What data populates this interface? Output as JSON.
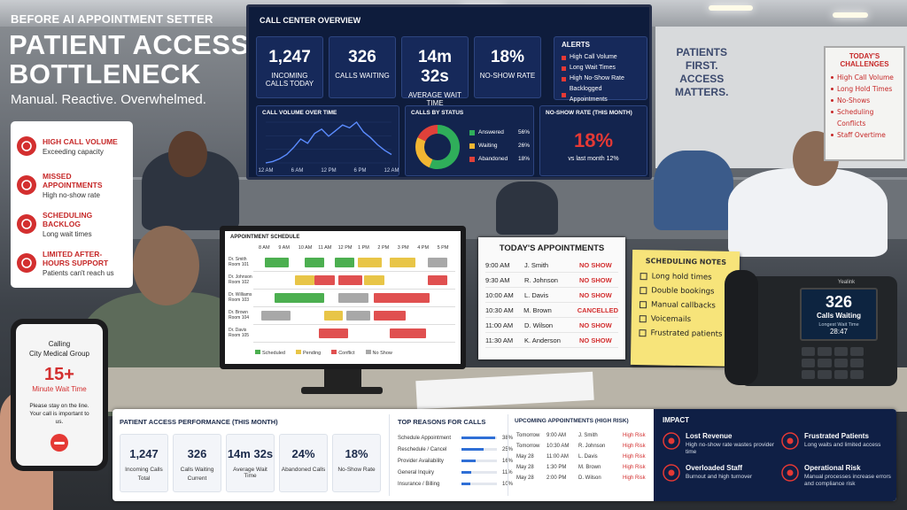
{
  "header": {
    "eyebrow": "BEFORE AI APPOINTMENT SETTER",
    "title_lines": [
      "PATIENT ACCESS",
      "BOTTLENECK"
    ],
    "subtitle": "Manual. Reactive. Overwhelmed."
  },
  "issues": [
    {
      "title": "HIGH CALL VOLUME",
      "detail": "Exceeding capacity"
    },
    {
      "title": "MISSED APPOINTMENTS",
      "detail": "High no-show rate"
    },
    {
      "title": "SCHEDULING BACKLOG",
      "detail": "Long wait times"
    },
    {
      "title": "LIMITED AFTER-HOURS SUPPORT",
      "detail": "Patients can't reach us"
    }
  ],
  "wall_screen": {
    "title": "CALL CENTER OVERVIEW",
    "kpis": [
      {
        "value": "1,247",
        "label": "INCOMING CALLS TODAY"
      },
      {
        "value": "326",
        "label": "CALLS WAITING"
      },
      {
        "value": "14m 32s",
        "label": "AVERAGE WAIT TIME"
      },
      {
        "value": "18%",
        "label": "NO-SHOW RATE"
      }
    ],
    "alerts": {
      "title": "ALERTS",
      "items": [
        "High Call Volume",
        "Long Wait Times",
        "High No-Show Rate",
        "Backlogged Appointments"
      ]
    },
    "call_volume": {
      "title": "CALL VOLUME OVER TIME",
      "x_labels": [
        "12 AM",
        "6 AM",
        "12 PM",
        "6 PM",
        "12 AM"
      ],
      "values": [
        8,
        10,
        14,
        20,
        30,
        42,
        36,
        50,
        56,
        46,
        54,
        62,
        58,
        66,
        52,
        44,
        34,
        26,
        20
      ]
    },
    "calls_by_status": {
      "title": "CALLS BY STATUS",
      "items": [
        {
          "label": "Answered",
          "value": 56,
          "value_label": "56%",
          "color": "#2fae5a"
        },
        {
          "label": "Waiting",
          "value": 26,
          "value_label": "26%",
          "color": "#f2b632"
        },
        {
          "label": "Abandoned",
          "value": 18,
          "value_label": "18%",
          "color": "#e0413a"
        }
      ]
    },
    "no_show": {
      "title": "NO-SHOW RATE (THIS MONTH)",
      "value": "18%",
      "comparison": "vs last month 12%"
    }
  },
  "wall_sign": {
    "lines": [
      "PATIENTS",
      "FIRST.",
      "ACCESS",
      "MATTERS."
    ]
  },
  "whiteboard": {
    "title": "TODAY'S CHALLENGES",
    "items": [
      "High Call Volume",
      "Long Hold Times",
      "No-Shows",
      "Scheduling Conflicts",
      "Staff Overtime"
    ]
  },
  "schedule": {
    "title": "APPOINTMENT SCHEDULE",
    "times": [
      "8 AM",
      "9 AM",
      "10 AM",
      "11 AM",
      "12 PM",
      "1 PM",
      "2 PM",
      "3 PM",
      "4 PM",
      "5 PM"
    ],
    "providers": [
      {
        "name": "Dr. Smith",
        "room": "Room 101"
      },
      {
        "name": "Dr. Johnson",
        "room": "Room 102"
      },
      {
        "name": "Dr. Williams",
        "room": "Room 103"
      },
      {
        "name": "Dr. Brown",
        "room": "Room 104"
      },
      {
        "name": "Dr. Davis",
        "room": "Room 105"
      }
    ],
    "legend": [
      {
        "label": "Scheduled",
        "color": "#4caf50"
      },
      {
        "label": "Pending",
        "color": "#e8c547"
      },
      {
        "label": "Conflict",
        "color": "#e05050"
      },
      {
        "label": "No Show",
        "color": "#a8a8a8"
      }
    ]
  },
  "appointments_sheet": {
    "title": "TODAY'S APPOINTMENTS",
    "rows": [
      [
        "9:00 AM",
        "J. Smith",
        "NO SHOW"
      ],
      [
        "9:30 AM",
        "R. Johnson",
        "NO SHOW"
      ],
      [
        "10:00 AM",
        "L. Davis",
        "NO SHOW"
      ],
      [
        "10:30 AM",
        "M. Brown",
        "CANCELLED"
      ],
      [
        "11:00 AM",
        "D. Wilson",
        "NO SHOW"
      ],
      [
        "11:30 AM",
        "K. Anderson",
        "NO SHOW"
      ]
    ]
  },
  "sticky_note": {
    "title": "SCHEDULING NOTES",
    "items": [
      "Long hold times",
      "Double bookings",
      "Manual callbacks",
      "Voicemails",
      "Frustrated patients"
    ]
  },
  "desk_phone": {
    "brand": "Yealink",
    "count": "326",
    "count_label": "Calls Waiting",
    "wait_label": "Longest Wait Time",
    "wait_value": "28:47"
  },
  "mobile_phone": {
    "status": "Calling",
    "caller": "City Medical Group",
    "wait_value": "15+",
    "wait_label": "Minute Wait Time",
    "message": "Please stay on the line. Your call is important to us."
  },
  "performance": {
    "title": "PATIENT ACCESS PERFORMANCE (THIS MONTH)",
    "metrics": [
      {
        "value": "1,247",
        "label": "Incoming Calls",
        "sublabel": "Total"
      },
      {
        "value": "326",
        "label": "Calls Waiting",
        "sublabel": "Current"
      },
      {
        "value": "14m 32s",
        "label": "Average Wait Time"
      },
      {
        "value": "24%",
        "label": "Abandoned Calls"
      },
      {
        "value": "18%",
        "label": "No-Show Rate"
      }
    ]
  },
  "reasons": {
    "title": "TOP REASONS FOR CALLS",
    "items": [
      {
        "label": "Schedule Appointment",
        "value": 38,
        "value_label": "38%"
      },
      {
        "label": "Reschedule / Cancel",
        "value": 25,
        "value_label": "25%"
      },
      {
        "label": "Provider Availability",
        "value": 16,
        "value_label": "16%"
      },
      {
        "label": "General Inquiry",
        "value": 11,
        "value_label": "11%"
      },
      {
        "label": "Insurance / Billing",
        "value": 10,
        "value_label": "10%"
      }
    ]
  },
  "upcoming": {
    "title": "UPCOMING APPOINTMENTS (HIGH RISK)",
    "rows": [
      [
        "Tomorrow",
        "9:00 AM",
        "J. Smith",
        "High Risk"
      ],
      [
        "Tomorrow",
        "10:30 AM",
        "R. Johnson",
        "High Risk"
      ],
      [
        "May 28",
        "11:00 AM",
        "L. Davis",
        "High Risk"
      ],
      [
        "May 28",
        "1:30 PM",
        "M. Brown",
        "High Risk"
      ],
      [
        "May 28",
        "2:00 PM",
        "D. Wilson",
        "High Risk"
      ]
    ]
  },
  "impact": {
    "title": "IMPACT",
    "items": [
      {
        "title": "Lost Revenue",
        "detail": "High no-show rate wastes provider time"
      },
      {
        "title": "Frustrated Patients",
        "detail": "Long waits and limited access"
      },
      {
        "title": "Overloaded Staff",
        "detail": "Burnout and high turnover"
      },
      {
        "title": "Operational Risk",
        "detail": "Manual processes increase errors and compliance risk"
      }
    ]
  }
}
